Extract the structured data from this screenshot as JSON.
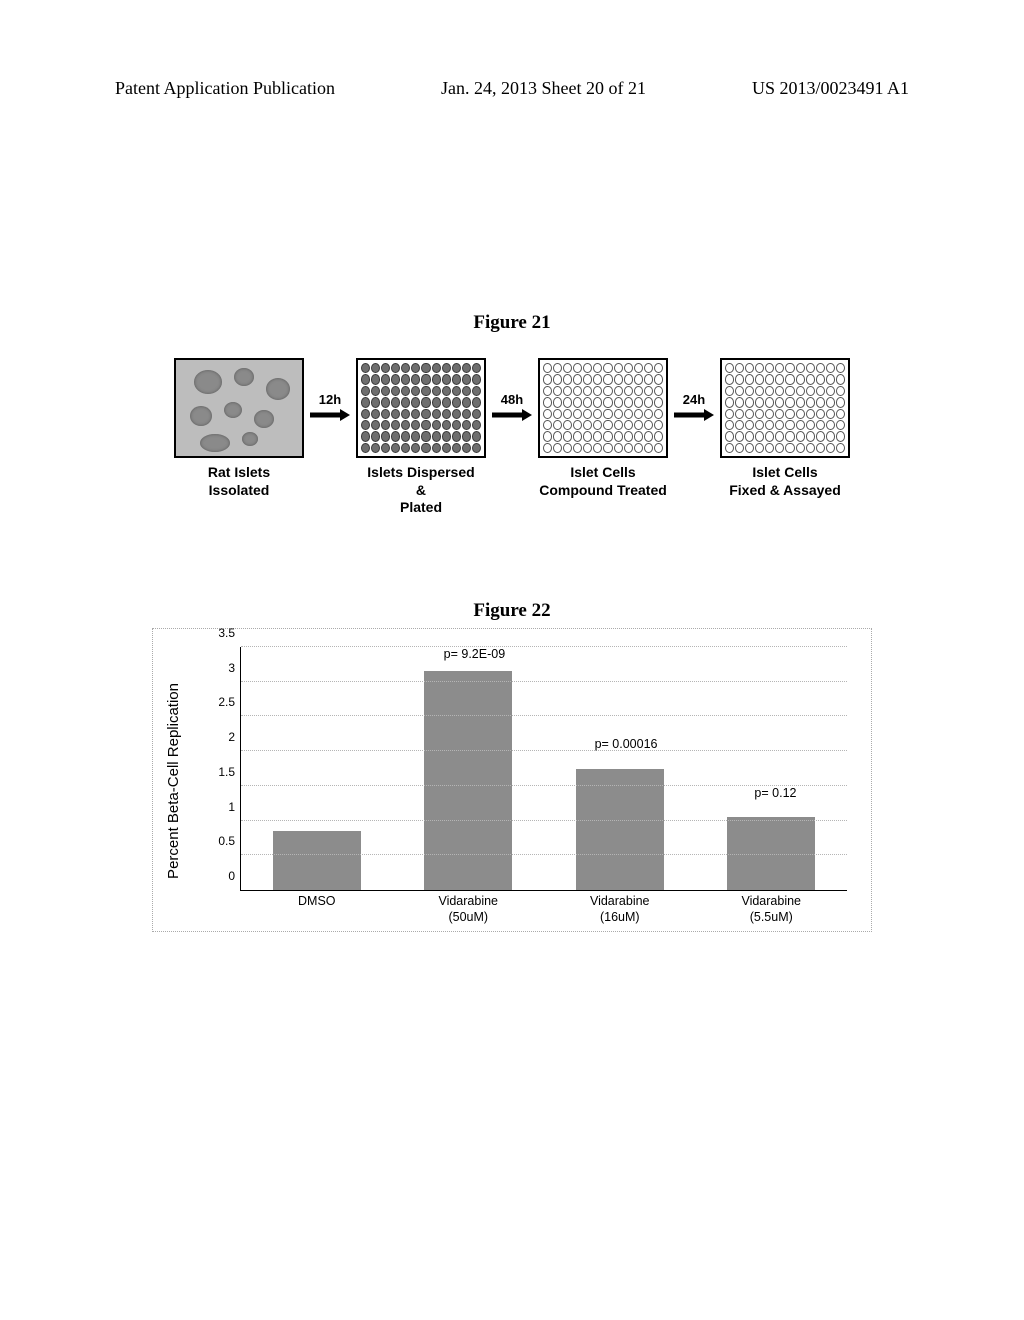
{
  "header": {
    "left": "Patent Application Publication",
    "middle": "Jan. 24, 2013  Sheet 20 of 21",
    "right": "US 2013/0023491 A1"
  },
  "fig21": {
    "title": "Figure 21",
    "arrows": [
      "12h",
      "48h",
      "24h"
    ],
    "steps": [
      "Rat Islets\nIssolated",
      "Islets Dispersed\n&\nPlated",
      "Islet Cells\nCompound Treated",
      "Islet Cells\nFixed & Assayed"
    ],
    "panel_border_color": "#000000",
    "well_filled_color": "#6e6e6e",
    "well_empty_border": "#555555"
  },
  "fig22": {
    "title": "Figure 22",
    "type": "bar",
    "ylabel": "Percent Beta-Cell Replication",
    "ylim": [
      0,
      3.5
    ],
    "ytick_step": 0.5,
    "yticks_labels": [
      "0",
      "0.5",
      "1",
      "1.5",
      "2",
      "2.5",
      "3",
      "3.5"
    ],
    "categories": [
      "DMSO",
      "Vidarabine\n(50uM)",
      "Vidarabine\n(16uM)",
      "Vidarabine\n(5.5uM)"
    ],
    "values": [
      0.85,
      3.15,
      1.75,
      1.05
    ],
    "bar_color": "#8c8c8c",
    "grid_color": "#b5b5b5",
    "axis_color": "#000000",
    "background_color": "#ffffff",
    "frame_border_color": "#aaaaaa",
    "bar_width": 0.58,
    "p_labels": [
      {
        "text": "p= 9.2E-09",
        "bar_index": 1,
        "y": 3.3
      },
      {
        "text": "p= 0.00016",
        "bar_index": 2,
        "y": 2.0
      },
      {
        "text": "p= 0.12",
        "bar_index": 3,
        "y": 1.3
      }
    ],
    "label_fontsize": 12.5,
    "ylabel_fontsize": 15
  }
}
